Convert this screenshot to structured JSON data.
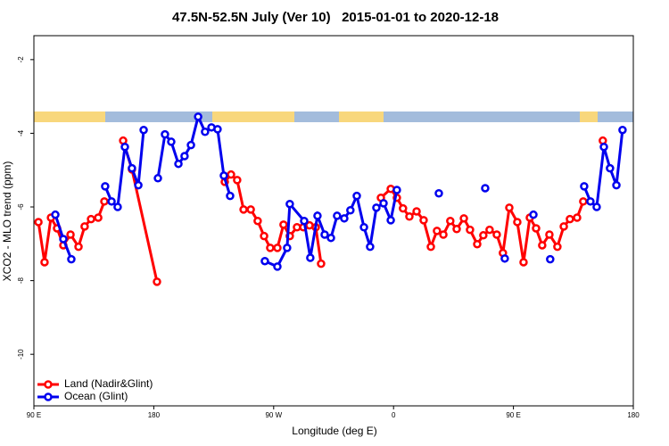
{
  "chart_data": {
    "type": "line",
    "title": "47.5N-52.5N July (Ver 10)   2015-01-01 to 2020-12-18",
    "x_label": "Longitude (deg E)",
    "y_label": "XCO2 - MLO trend (ppm)",
    "xlim": [
      90,
      540
    ],
    "xticks": [
      {
        "value": 90,
        "label": "90 E"
      },
      {
        "value": 180,
        "label": "180"
      },
      {
        "value": 270,
        "label": "90 W"
      },
      {
        "value": 360,
        "label": "0"
      },
      {
        "value": 450,
        "label": "90 E"
      },
      {
        "value": 540,
        "label": "180"
      }
    ],
    "ylim": [
      -11.4,
      -1.35
    ],
    "yticks": [
      -2,
      -4,
      -6,
      -8,
      -10
    ],
    "legend": "bottom-left",
    "series": [
      {
        "name": "Land (Nadir&Glint)",
        "color": "#ff0000",
        "x": [
          93.4,
          98.0,
          102.8,
          107.4,
          112.1,
          117.5,
          123.5,
          128.1,
          132.9,
          138.3,
          142.9,
          null,
          157.0,
          163.6,
          182.4,
          null,
          233.3,
          238.0,
          242.6,
          247.4,
          252.8,
          258.0,
          262.8,
          267.4,
          272.8,
          277.4,
          282.1,
          287.5,
          292.3,
          296.9,
          301.6,
          305.6,
          null,
          350.5,
          357.9,
          362.5,
          367.1,
          371.9,
          377.3,
          382.6,
          388.0,
          392.6,
          397.4,
          402.6,
          407.4,
          412.8,
          417.4,
          422.8,
          427.4,
          432.1,
          437.5,
          442.1,
          446.9,
          452.9,
          457.6,
          462.3,
          467.0,
          471.6,
          477.0,
          483.0,
          487.8,
          492.4,
          497.8,
          502.4,
          null,
          517.1
        ],
        "values": [
          -6.41,
          -7.5,
          -6.29,
          -6.58,
          -7.04,
          -6.75,
          -7.08,
          -6.53,
          -6.33,
          -6.29,
          -5.85,
          null,
          -4.2,
          -4.98,
          -8.03,
          null,
          -5.32,
          -5.12,
          -5.27,
          -6.07,
          -6.07,
          -6.38,
          -6.79,
          -7.11,
          -7.11,
          -6.48,
          -6.79,
          -6.55,
          -6.55,
          -6.5,
          -6.55,
          -7.54,
          null,
          -5.75,
          -5.51,
          -5.75,
          -6.04,
          -6.26,
          -6.12,
          -6.36,
          -7.08,
          -6.65,
          -6.75,
          -6.38,
          -6.6,
          -6.31,
          -6.62,
          -7.01,
          -6.77,
          -6.62,
          -6.75,
          -7.25,
          -6.02,
          -6.41,
          -7.5,
          -6.29,
          -6.58,
          -7.04,
          -6.75,
          -7.08,
          -6.53,
          -6.33,
          -6.29,
          -5.85,
          null,
          -4.2
        ]
      },
      {
        "name": "Ocean (Glint)",
        "color": "#0000ee",
        "x": [
          106.1,
          112.1,
          118.1,
          null,
          143.5,
          148.3,
          152.9,
          158.3,
          163.6,
          168.4,
          172.4,
          null,
          183.1,
          188.4,
          193.1,
          198.5,
          203.1,
          207.9,
          213.3,
          218.5,
          223.3,
          227.9,
          232.6,
          237.3,
          null,
          263.4,
          272.8,
          280.1,
          282.1,
          292.9,
          297.5,
          302.9,
          308.3,
          313.0,
          317.6,
          323.0,
          327.6,
          332.4,
          337.8,
          342.4,
          347.1,
          352.5,
          357.9,
          362.5,
          null,
          394.0,
          null,
          428.8,
          null,
          443.5,
          null,
          465.0,
          null,
          477.6,
          null,
          503.1,
          507.8,
          512.5,
          517.9,
          522.5,
          527.3,
          531.9
        ],
        "values": [
          -6.21,
          -6.87,
          -7.42,
          null,
          -5.44,
          -5.85,
          -6.0,
          -4.37,
          -4.95,
          -5.41,
          -3.91,
          null,
          -5.22,
          -4.03,
          -4.23,
          -4.83,
          -4.62,
          -4.32,
          -3.55,
          -3.96,
          -3.84,
          -3.89,
          -5.15,
          -5.7,
          null,
          -7.47,
          -7.62,
          -7.11,
          -5.92,
          -6.38,
          -7.38,
          -6.24,
          -6.75,
          -6.84,
          -6.24,
          -6.31,
          -6.09,
          -5.7,
          -6.55,
          -7.08,
          -6.02,
          -5.9,
          -6.36,
          -5.54,
          null,
          -5.63,
          null,
          -5.49,
          null,
          -7.4,
          null,
          -6.21,
          null,
          -7.42,
          null,
          -5.44,
          -5.85,
          -6.0,
          -4.37,
          -4.95,
          -5.41,
          -3.91
        ]
      }
    ]
  }
}
